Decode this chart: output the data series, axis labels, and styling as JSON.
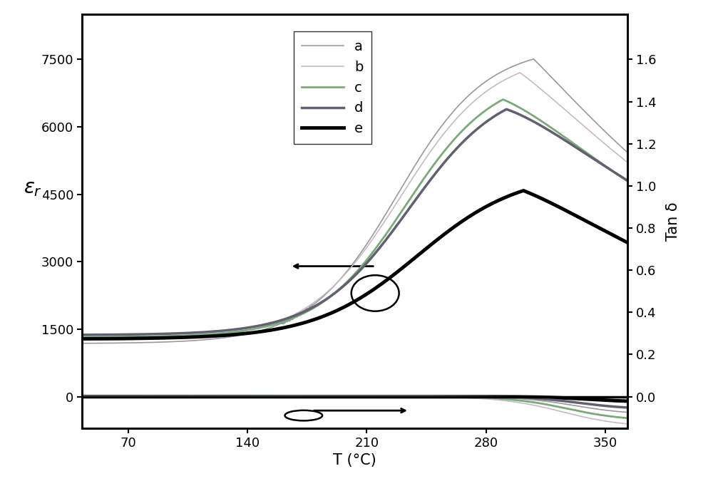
{
  "xlabel": "T (°C)",
  "ylabel_left": "$\\varepsilon_r$",
  "ylabel_right": "Tan δ",
  "x_range": [
    43,
    363
  ],
  "x_ticks": [
    70,
    140,
    210,
    280,
    350
  ],
  "y_left_ticks": [
    0,
    1500,
    3000,
    4500,
    6000,
    7500
  ],
  "y_right_ticks": [
    0.0,
    0.2,
    0.4,
    0.6,
    0.8,
    1.0,
    1.2,
    1.4,
    1.6
  ],
  "eps_ylim": [
    -700,
    8500
  ],
  "tan_scale": 5000,
  "background_color": "#ffffff",
  "series_colors": {
    "a": "#999999",
    "b": "#c8b8c8",
    "c": "#7aaa7a",
    "d": "#606070",
    "e": "#000000"
  },
  "series_lw": {
    "a": 1.2,
    "b": 1.2,
    "c": 2.0,
    "d": 2.5,
    "e": 3.5
  }
}
